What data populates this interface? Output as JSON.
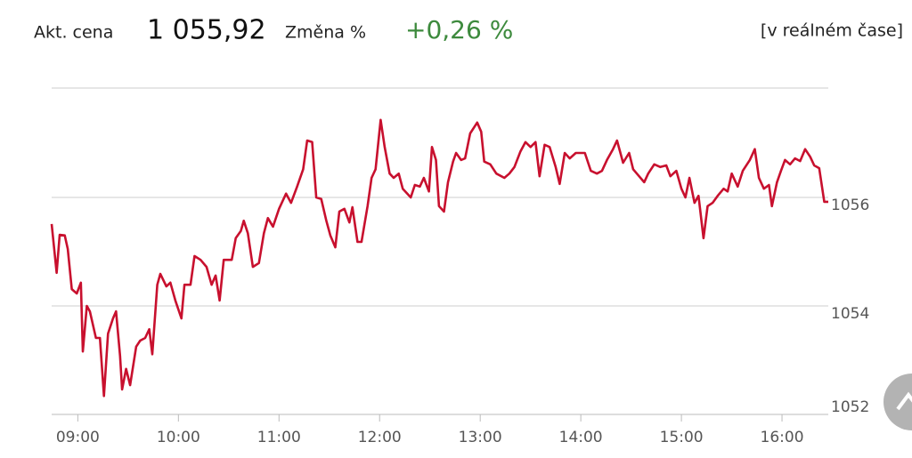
{
  "header": {
    "price_label": "Akt. cena",
    "price": "1 055,92",
    "change_label": "Změna %",
    "change": "+0,26 %",
    "mode": "[v reálném čase]"
  },
  "chart_data": {
    "type": "line",
    "x": [
      8.74,
      8.79,
      8.82,
      8.87,
      8.9,
      8.94,
      8.99,
      9.03,
      9.05,
      9.09,
      9.12,
      9.18,
      9.22,
      9.26,
      9.3,
      9.35,
      9.38,
      9.42,
      9.44,
      9.48,
      9.52,
      9.58,
      9.62,
      9.67,
      9.71,
      9.74,
      9.79,
      9.82,
      9.88,
      9.92,
      9.97,
      10.03,
      10.06,
      10.12,
      10.16,
      10.22,
      10.28,
      10.33,
      10.37,
      10.41,
      10.45,
      10.53,
      10.57,
      10.62,
      10.65,
      10.69,
      10.74,
      10.8,
      10.85,
      10.89,
      10.94,
      11.0,
      11.07,
      11.12,
      11.18,
      11.24,
      11.28,
      11.33,
      11.37,
      11.42,
      11.47,
      11.51,
      11.56,
      11.6,
      11.65,
      11.7,
      11.73,
      11.78,
      11.82,
      11.88,
      11.92,
      11.96,
      12.01,
      12.05,
      12.1,
      12.14,
      12.19,
      12.23,
      12.31,
      12.35,
      12.4,
      12.44,
      12.49,
      12.52,
      12.56,
      12.59,
      12.64,
      12.68,
      12.73,
      12.76,
      12.81,
      12.85,
      12.9,
      12.97,
      13.01,
      13.04,
      13.1,
      13.16,
      13.24,
      13.29,
      13.34,
      13.4,
      13.45,
      13.5,
      13.55,
      13.59,
      13.64,
      13.69,
      13.75,
      13.79,
      13.84,
      13.89,
      13.95,
      14.04,
      14.1,
      14.16,
      14.21,
      14.26,
      14.32,
      14.36,
      14.42,
      14.48,
      14.52,
      14.58,
      14.63,
      14.67,
      14.73,
      14.79,
      14.85,
      14.89,
      14.95,
      15.0,
      15.04,
      15.08,
      15.13,
      15.17,
      15.22,
      15.26,
      15.31,
      15.36,
      15.42,
      15.46,
      15.5,
      15.56,
      15.61,
      15.68,
      15.73,
      15.77,
      15.82,
      15.87,
      15.9,
      15.95,
      15.99,
      16.03,
      16.08,
      16.13,
      16.18,
      16.23,
      16.28,
      16.32,
      16.37,
      16.42,
      16.46
    ],
    "series": [
      {
        "color": "#c8102e",
        "values": [
          1055.51,
          1054.61,
          1055.31,
          1055.3,
          1055.05,
          1054.31,
          1054.23,
          1054.43,
          1053.16,
          1054.0,
          1053.9,
          1053.41,
          1053.41,
          1052.34,
          1053.49,
          1053.77,
          1053.9,
          1053.08,
          1052.46,
          1052.84,
          1052.54,
          1053.25,
          1053.36,
          1053.41,
          1053.57,
          1053.11,
          1054.39,
          1054.59,
          1054.36,
          1054.43,
          1054.1,
          1053.77,
          1054.39,
          1054.39,
          1054.92,
          1054.85,
          1054.72,
          1054.39,
          1054.56,
          1054.1,
          1054.85,
          1054.85,
          1055.25,
          1055.38,
          1055.57,
          1055.34,
          1054.72,
          1054.79,
          1055.34,
          1055.62,
          1055.46,
          1055.79,
          1056.07,
          1055.9,
          1056.2,
          1056.52,
          1057.05,
          1057.02,
          1056.0,
          1055.97,
          1055.57,
          1055.3,
          1055.08,
          1055.74,
          1055.79,
          1055.54,
          1055.82,
          1055.18,
          1055.18,
          1055.84,
          1056.36,
          1056.52,
          1057.43,
          1056.93,
          1056.44,
          1056.36,
          1056.44,
          1056.16,
          1056.0,
          1056.23,
          1056.2,
          1056.36,
          1056.11,
          1056.93,
          1056.69,
          1055.84,
          1055.74,
          1056.28,
          1056.66,
          1056.82,
          1056.69,
          1056.72,
          1057.18,
          1057.38,
          1057.21,
          1056.66,
          1056.61,
          1056.44,
          1056.36,
          1056.44,
          1056.56,
          1056.85,
          1057.02,
          1056.93,
          1057.02,
          1056.39,
          1056.97,
          1056.93,
          1056.56,
          1056.25,
          1056.82,
          1056.72,
          1056.82,
          1056.82,
          1056.49,
          1056.44,
          1056.49,
          1056.69,
          1056.89,
          1057.05,
          1056.64,
          1056.82,
          1056.52,
          1056.39,
          1056.28,
          1056.44,
          1056.61,
          1056.56,
          1056.59,
          1056.39,
          1056.49,
          1056.16,
          1056.0,
          1056.36,
          1055.9,
          1056.03,
          1055.25,
          1055.84,
          1055.9,
          1056.03,
          1056.16,
          1056.11,
          1056.44,
          1056.2,
          1056.49,
          1056.69,
          1056.89,
          1056.36,
          1056.16,
          1056.23,
          1055.84,
          1056.28,
          1056.49,
          1056.69,
          1056.61,
          1056.72,
          1056.67,
          1056.89,
          1056.75,
          1056.59,
          1056.54,
          1055.92,
          1055.92
        ]
      }
    ],
    "xlim": [
      8.74,
      16.46
    ],
    "xticks": [
      {
        "value": 9,
        "label": "09:00"
      },
      {
        "value": 10,
        "label": "10:00"
      },
      {
        "value": 11,
        "label": "11:00"
      },
      {
        "value": 12,
        "label": "12:00"
      },
      {
        "value": 13,
        "label": "13:00"
      },
      {
        "value": 14,
        "label": "14:00"
      },
      {
        "value": 15,
        "label": "15:00"
      },
      {
        "value": 16,
        "label": "16:00"
      }
    ],
    "ylim": [
      1052,
      1058
    ],
    "yticks": [
      1052,
      1054,
      1056
    ],
    "grid": true
  }
}
